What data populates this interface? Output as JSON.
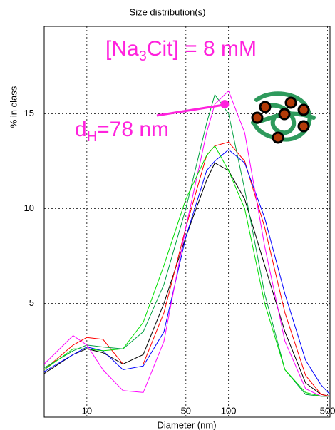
{
  "chart_data": {
    "type": "line",
    "title": "Size distribution(s)",
    "x_label": "Diameter (nm)",
    "y_label": "% in class",
    "x_log": true,
    "grid": true,
    "xlim": [
      5,
      520
    ],
    "ylim": [
      -1,
      19.6
    ],
    "xticks": [
      10,
      50,
      100,
      500
    ],
    "yticks": [
      5,
      10,
      15
    ],
    "x": [
      5,
      8,
      10,
      13,
      18,
      25,
      35,
      50,
      70,
      80,
      100,
      130,
      180,
      250,
      350,
      450,
      520
    ],
    "series": [
      {
        "color": "#000000",
        "values": [
          1.3,
          2.3,
          2.6,
          2.4,
          1.8,
          2.3,
          5,
          8.5,
          11.5,
          12.4,
          12,
          10.5,
          7,
          3.5,
          0.8,
          0.2,
          0.1
        ]
      },
      {
        "color": "#ff0000",
        "values": [
          1.5,
          2.8,
          3.2,
          3.1,
          1.8,
          1.8,
          4.5,
          9,
          12.8,
          13.3,
          13.5,
          12.5,
          9,
          4.5,
          1.2,
          0.2,
          0.1
        ]
      },
      {
        "color": "#00a040",
        "values": [
          1.6,
          2.5,
          2.8,
          2.7,
          2.6,
          3.5,
          6,
          10,
          14.5,
          16,
          15,
          11,
          5.5,
          1.5,
          0.2,
          0.1,
          0.1
        ]
      },
      {
        "color": "#0000ff",
        "values": [
          1.4,
          2.3,
          2.7,
          2.5,
          1.5,
          1.7,
          3.5,
          8.5,
          12,
          12.5,
          13.1,
          12.4,
          9.5,
          5.5,
          2,
          0.7,
          0.2
        ]
      },
      {
        "color": "#ff00ff",
        "values": [
          1.8,
          3.3,
          2.8,
          1.5,
          0.4,
          0.3,
          3,
          9,
          14,
          15.5,
          16.2,
          14,
          8,
          3,
          0.5,
          0.1,
          0.1
        ]
      },
      {
        "color": "#00e000",
        "values": [
          1.5,
          2.6,
          2.6,
          2.5,
          2.6,
          4,
          7,
          10.5,
          12.8,
          13.3,
          12,
          10,
          5,
          1.5,
          0.3,
          0.1,
          0.1
        ]
      }
    ],
    "annotations": [
      {
        "parts": [
          "[Na",
          "3",
          "Cit] = 8 mM"
        ]
      },
      {
        "parts": [
          "d",
          "H",
          "=78 nm"
        ]
      }
    ],
    "highlight_point": {
      "x": 94,
      "y": 15.5,
      "color": "#ff22dd"
    }
  }
}
